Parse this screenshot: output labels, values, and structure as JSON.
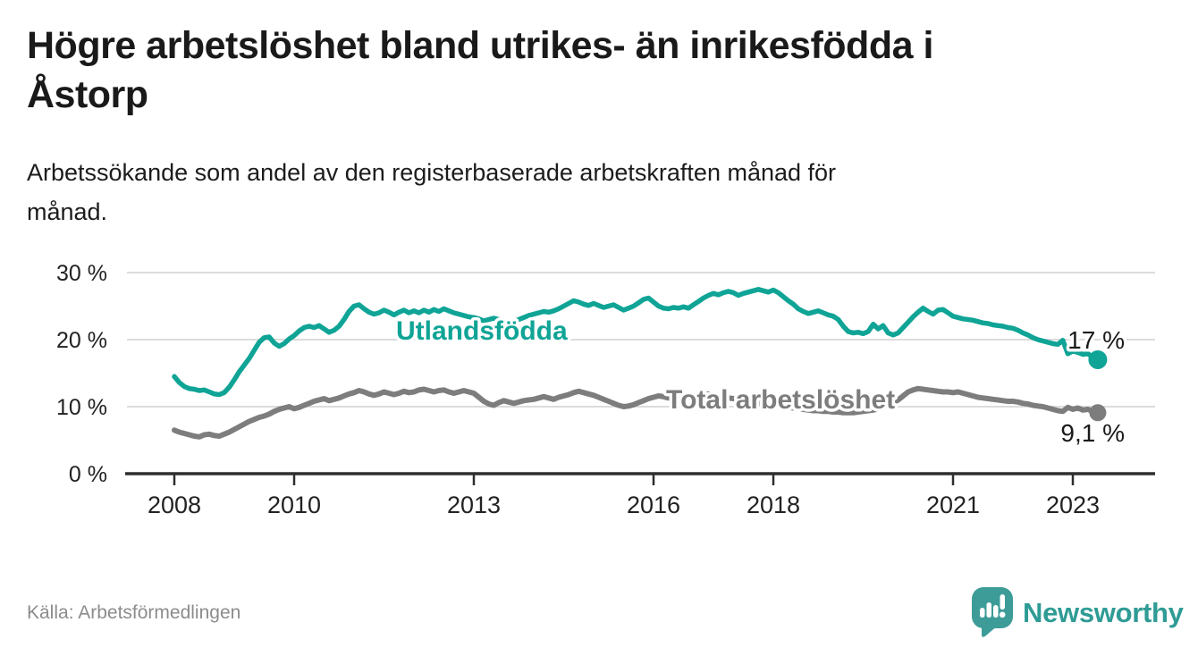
{
  "header": {
    "title_lines": [
      "Högre arbetslöshet bland utrikes- än inrikesfödda i",
      "Åstorp"
    ],
    "subtitle_lines": [
      "Arbetssökande som andel av den registerbaserade arbetskraften månad för",
      "månad."
    ]
  },
  "chart_data": {
    "type": "line",
    "title": "Högre arbetslöshet bland utrikes- än inrikesfödda i Åstorp",
    "subtitle": "Arbetssökande som andel av den registerbaserade arbetskraften månad för månad.",
    "unit": "%",
    "frequency": "monthly",
    "x_start": "2008-01",
    "x_end": "2023-06",
    "grid": true,
    "y_axis": {
      "range": [
        0,
        31
      ],
      "ticks": [
        {
          "value": 30,
          "label": "30 %"
        },
        {
          "value": 20,
          "label": "20 %"
        },
        {
          "value": 10,
          "label": "10 %"
        },
        {
          "value": 0,
          "label": "0 %"
        }
      ]
    },
    "x_axis": {
      "ticks": [
        {
          "year": 2008,
          "label": "2008"
        },
        {
          "year": 2010,
          "label": "2010"
        },
        {
          "year": 2013,
          "label": "2013"
        },
        {
          "year": 2016,
          "label": "2016"
        },
        {
          "year": 2018,
          "label": "2018"
        },
        {
          "year": 2021,
          "label": "2021"
        },
        {
          "year": 2023,
          "label": "2023"
        }
      ]
    },
    "series": [
      {
        "id": "utlandsfodda",
        "name": "Utlandsfödda",
        "color": "#0fa496",
        "end_label": "17 %",
        "last_value": 17.0,
        "values": [
          14.5,
          13.6,
          13.0,
          12.7,
          12.6,
          12.4,
          12.5,
          12.2,
          11.9,
          11.8,
          12.1,
          12.9,
          14.0,
          15.2,
          16.2,
          17.2,
          18.4,
          19.6,
          20.3,
          20.4,
          19.5,
          19.0,
          19.4,
          20.1,
          20.6,
          21.3,
          21.8,
          22.0,
          21.8,
          22.1,
          21.6,
          21.1,
          21.4,
          22.0,
          23.0,
          24.2,
          25.0,
          25.2,
          24.6,
          24.1,
          23.8,
          24.0,
          24.4,
          24.1,
          23.7,
          24.1,
          24.4,
          24.0,
          24.3,
          24.0,
          24.4,
          24.1,
          24.5,
          24.2,
          24.6,
          24.3,
          24.0,
          23.8,
          23.6,
          23.4,
          23.3,
          23.1,
          22.8,
          23.0,
          23.2,
          23.0,
          22.6,
          22.4,
          22.7,
          23.0,
          23.3,
          23.6,
          23.8,
          24.0,
          24.2,
          24.1,
          24.3,
          24.6,
          25.0,
          25.4,
          25.8,
          25.6,
          25.3,
          25.1,
          25.4,
          25.1,
          24.8,
          25.0,
          25.2,
          24.8,
          24.4,
          24.7,
          25.0,
          25.5,
          26.0,
          26.2,
          25.6,
          25.0,
          24.7,
          24.6,
          24.8,
          24.7,
          24.9,
          24.7,
          25.2,
          25.7,
          26.2,
          26.6,
          26.9,
          26.7,
          27.0,
          27.2,
          27.0,
          26.6,
          26.9,
          27.1,
          27.3,
          27.5,
          27.3,
          27.1,
          27.4,
          27.0,
          26.4,
          25.8,
          25.3,
          24.6,
          24.2,
          23.9,
          24.1,
          24.3,
          24.0,
          23.7,
          23.5,
          23.0,
          22.0,
          21.2,
          21.0,
          21.1,
          20.9,
          21.2,
          22.3,
          21.6,
          22.1,
          21.0,
          20.7,
          21.0,
          21.8,
          22.6,
          23.4,
          24.1,
          24.7,
          24.2,
          23.8,
          24.4,
          24.5,
          24.0,
          23.5,
          23.3,
          23.1,
          23.0,
          22.9,
          22.7,
          22.5,
          22.4,
          22.2,
          22.1,
          22.0,
          21.8,
          21.7,
          21.4,
          21.0,
          20.7,
          20.3,
          20.0,
          19.8,
          19.6,
          19.4,
          19.3,
          19.9,
          17.9,
          18.3,
          18.1,
          17.8,
          17.9,
          17.4,
          17.0
        ]
      },
      {
        "id": "total",
        "name": "Total arbetslöshet",
        "color": "#7d7d7d",
        "end_label": "9,1 %",
        "last_value": 9.1,
        "values": [
          6.5,
          6.2,
          6.0,
          5.8,
          5.6,
          5.5,
          5.8,
          5.9,
          5.7,
          5.6,
          5.9,
          6.2,
          6.6,
          7.0,
          7.4,
          7.8,
          8.1,
          8.4,
          8.6,
          8.9,
          9.3,
          9.6,
          9.8,
          10.0,
          9.7,
          9.9,
          10.2,
          10.5,
          10.8,
          11.0,
          11.2,
          10.9,
          11.1,
          11.3,
          11.6,
          11.9,
          12.1,
          12.4,
          12.2,
          11.9,
          11.7,
          11.9,
          12.2,
          12.0,
          11.8,
          12.0,
          12.3,
          12.1,
          12.2,
          12.5,
          12.6,
          12.4,
          12.2,
          12.4,
          12.5,
          12.2,
          12.0,
          12.2,
          12.4,
          12.2,
          12.0,
          11.4,
          10.8,
          10.4,
          10.2,
          10.6,
          10.9,
          10.7,
          10.5,
          10.7,
          10.9,
          11.0,
          11.1,
          11.3,
          11.5,
          11.3,
          11.1,
          11.4,
          11.6,
          11.8,
          12.1,
          12.3,
          12.1,
          11.9,
          11.7,
          11.4,
          11.1,
          10.8,
          10.5,
          10.2,
          10.0,
          10.1,
          10.3,
          10.6,
          10.9,
          11.2,
          11.4,
          11.6,
          11.5,
          11.3,
          11.5,
          11.6,
          11.4,
          11.5,
          11.7,
          11.6,
          11.8,
          11.9,
          11.8,
          11.6,
          11.5,
          11.3,
          11.2,
          11.0,
          10.9,
          10.7,
          10.6,
          10.5,
          10.4,
          10.3,
          10.2,
          10.1,
          10.0,
          9.9,
          9.8,
          9.7,
          9.6,
          9.5,
          9.4,
          9.4,
          9.3,
          9.3,
          9.2,
          9.2,
          9.1,
          9.1,
          9.1,
          9.2,
          9.3,
          9.4,
          9.5,
          9.7,
          9.9,
          10.2,
          10.6,
          11.0,
          11.6,
          12.2,
          12.5,
          12.7,
          12.6,
          12.5,
          12.4,
          12.3,
          12.2,
          12.2,
          12.1,
          12.2,
          12.0,
          11.8,
          11.6,
          11.4,
          11.3,
          11.2,
          11.1,
          11.0,
          10.9,
          10.8,
          10.8,
          10.7,
          10.5,
          10.4,
          10.2,
          10.1,
          10.0,
          9.8,
          9.6,
          9.4,
          9.3,
          9.9,
          9.6,
          9.8,
          9.5,
          9.6,
          9.3,
          9.1
        ]
      }
    ],
    "legend_position": "inline-labels"
  },
  "footer": {
    "source": "Källa: Arbetsförmedlingen",
    "logo_text": "Newsworthy"
  },
  "colors": {
    "accent_teal": "#0fa496",
    "series_gray": "#7d7d7d",
    "gridline": "#dcdcdc",
    "axis": "#2e2e2e",
    "logo_teal": "#3d9c98",
    "logo_text_teal": "#2f9b95"
  }
}
